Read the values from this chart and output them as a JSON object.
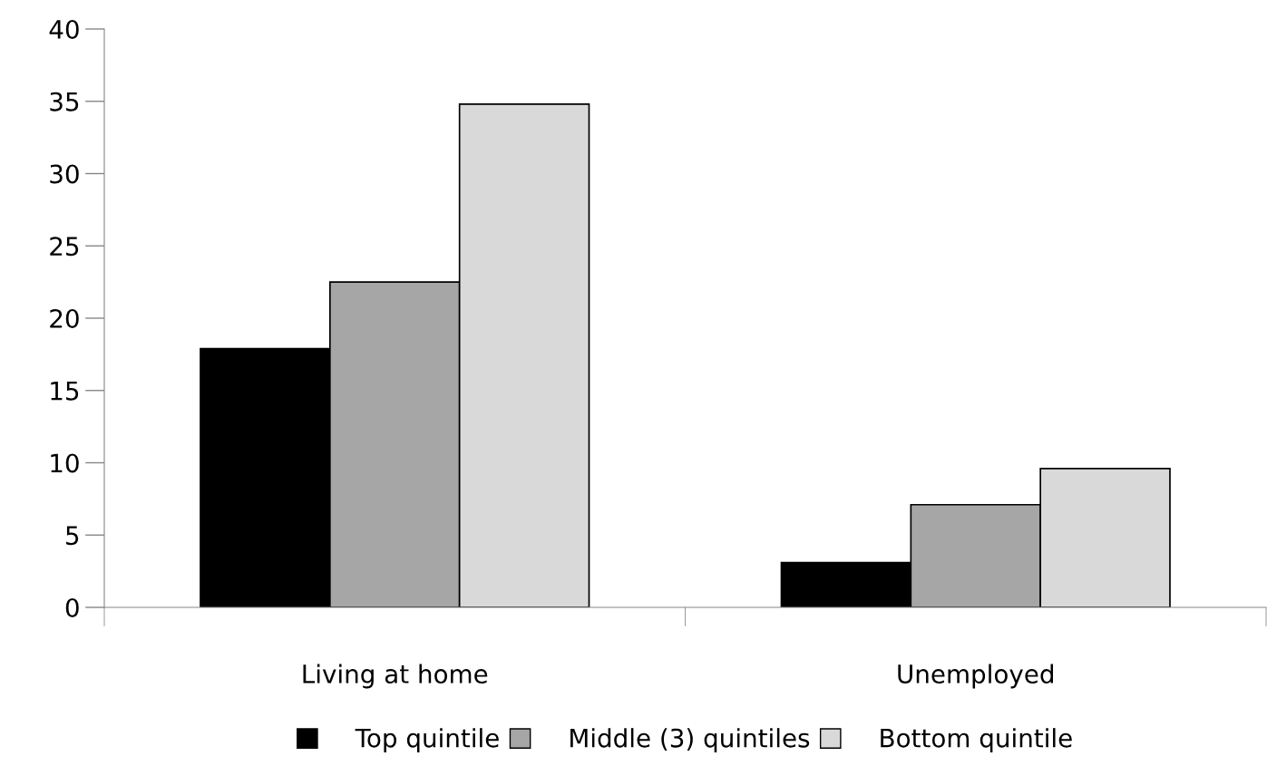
{
  "chart_data": {
    "type": "bar",
    "categories": [
      "Living at home",
      "Unemployed"
    ],
    "series": [
      {
        "name": "Top quintile",
        "color": "#000000",
        "values": [
          17.9,
          3.1
        ]
      },
      {
        "name": "Middle (3) quintiles",
        "color": "#a6a6a6",
        "values": [
          22.5,
          7.1
        ]
      },
      {
        "name": "Bottom quintile",
        "color": "#d9d9d9",
        "values": [
          34.8,
          9.6
        ]
      }
    ],
    "ylim": [
      0,
      40
    ],
    "yticks": [
      0,
      5,
      10,
      15,
      20,
      25,
      30,
      35,
      40
    ],
    "grid": false,
    "legend": "bottom"
  }
}
